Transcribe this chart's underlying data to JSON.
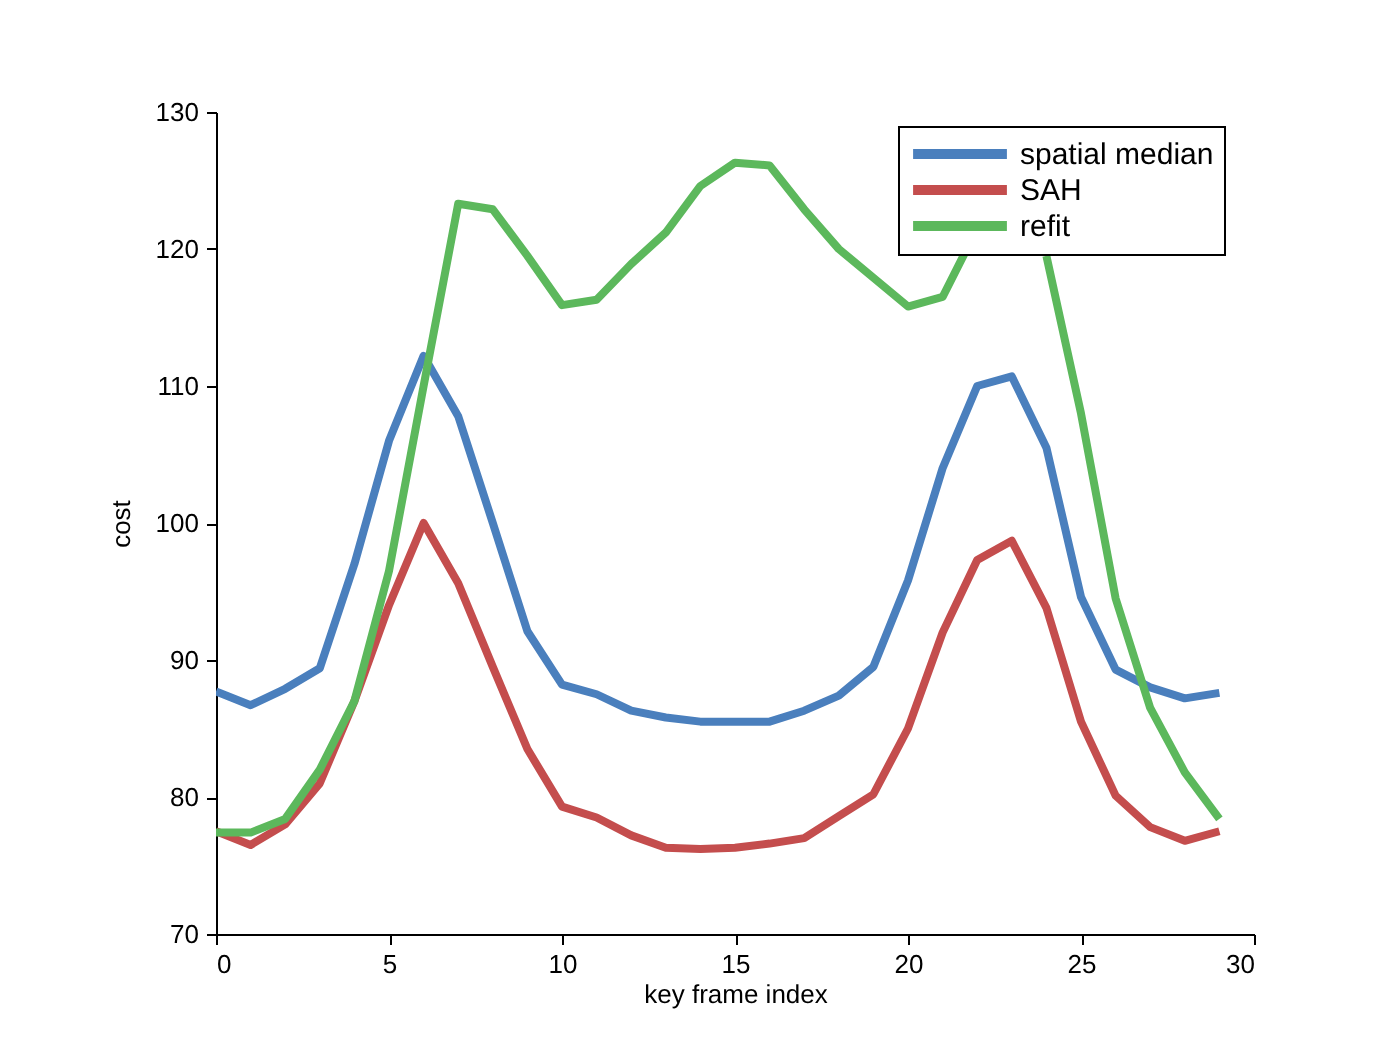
{
  "chart_data": {
    "type": "line",
    "xlabel": "key frame index",
    "ylabel": "cost",
    "x": [
      0,
      1,
      2,
      3,
      4,
      5,
      6,
      7,
      8,
      9,
      10,
      11,
      12,
      13,
      14,
      15,
      16,
      17,
      18,
      19,
      20,
      21,
      22,
      23,
      24,
      25,
      26,
      27,
      28,
      29
    ],
    "xlim": [
      0,
      30
    ],
    "xticks": [
      0,
      5,
      10,
      15,
      20,
      25,
      30
    ],
    "ylim": [
      70,
      130
    ],
    "yticks": [
      70,
      80,
      90,
      100,
      110,
      120,
      130
    ],
    "grid": false,
    "legend": "top right",
    "line_style": "solid",
    "marker": "none",
    "series": [
      {
        "name": "spatial median",
        "color": "#4a7fbd",
        "values": [
          87.7,
          86.7,
          87.9,
          89.4,
          97,
          106,
          112.2,
          107.8,
          100,
          92.1,
          88.2,
          87.5,
          86.3,
          85.8,
          85.5,
          85.5,
          85.5,
          86.3,
          87.4,
          89.5,
          95.8,
          104,
          110,
          110.7,
          105.5,
          94.6,
          89.3,
          88,
          87.2,
          87.6
        ]
      },
      {
        "name": "SAH",
        "color": "#c44d4d",
        "values": [
          77.5,
          76.5,
          78,
          81,
          87,
          94,
          100,
          95.6,
          89.5,
          83.5,
          79.3,
          78.5,
          77.2,
          76.3,
          76.2,
          76.3,
          76.6,
          77,
          78.6,
          80.2,
          85,
          92,
          97.3,
          98.7,
          93.8,
          85.5,
          80.1,
          77.8,
          76.8,
          77.5
        ]
      },
      {
        "name": "refit",
        "color": "#5cb85c",
        "values": [
          77.4,
          77.4,
          78.4,
          82,
          87,
          96.5,
          110,
          123.3,
          122.9,
          119.5,
          115.9,
          116.3,
          118.9,
          121.2,
          124.6,
          126.3,
          126.1,
          122.9,
          120,
          117.9,
          115.8,
          116.5,
          121.5,
          null,
          119.5,
          108,
          94.5,
          86.5,
          81.8,
          78.4
        ]
      }
    ]
  }
}
